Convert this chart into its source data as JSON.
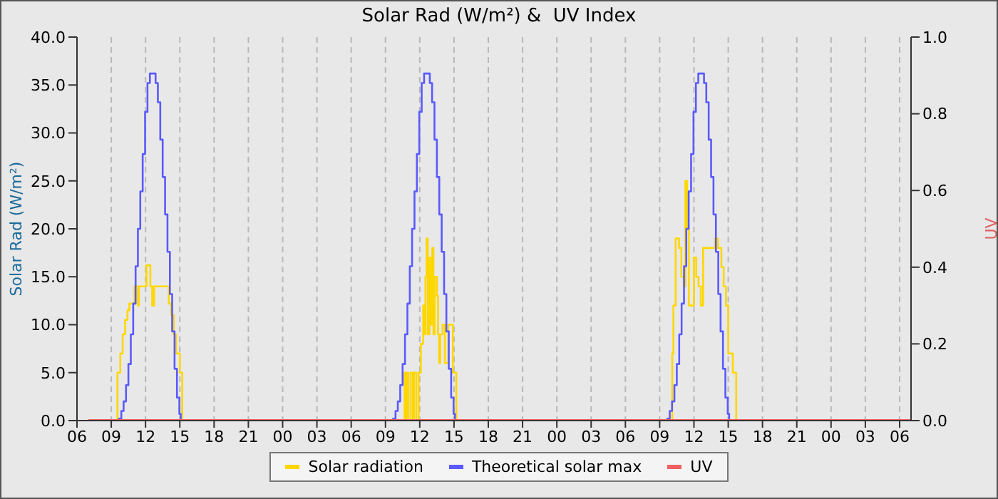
{
  "chart_data": {
    "type": "step",
    "title": "Solar Rad (W/m²) &  UV Index",
    "ylabel": "Solar Rad (W/m²)",
    "y2label": "UV",
    "xlim": [
      6,
      79
    ],
    "xticks": [
      {
        "value": 6,
        "label": "06"
      },
      {
        "value": 9,
        "label": "09"
      },
      {
        "value": 12,
        "label": "12"
      },
      {
        "value": 15,
        "label": "15"
      },
      {
        "value": 18,
        "label": "18"
      },
      {
        "value": 21,
        "label": "21"
      },
      {
        "value": 24,
        "label": "00"
      },
      {
        "value": 27,
        "label": "03"
      },
      {
        "value": 30,
        "label": "06"
      },
      {
        "value": 33,
        "label": "09"
      },
      {
        "value": 36,
        "label": "12"
      },
      {
        "value": 39,
        "label": "15"
      },
      {
        "value": 42,
        "label": "18"
      },
      {
        "value": 45,
        "label": "21"
      },
      {
        "value": 48,
        "label": "00"
      },
      {
        "value": 51,
        "label": "03"
      },
      {
        "value": 54,
        "label": "06"
      },
      {
        "value": 57,
        "label": "09"
      },
      {
        "value": 60,
        "label": "12"
      },
      {
        "value": 63,
        "label": "15"
      },
      {
        "value": 66,
        "label": "18"
      },
      {
        "value": 69,
        "label": "21"
      },
      {
        "value": 72,
        "label": "00"
      },
      {
        "value": 75,
        "label": "03"
      },
      {
        "value": 78,
        "label": "06"
      }
    ],
    "ylim": [
      0,
      40
    ],
    "yticks": [
      {
        "value": 0,
        "label": "0.0"
      },
      {
        "value": 5,
        "label": "5.0"
      },
      {
        "value": 10,
        "label": "10.0"
      },
      {
        "value": 15,
        "label": "15.0"
      },
      {
        "value": 20,
        "label": "20.0"
      },
      {
        "value": 25,
        "label": "25.0"
      },
      {
        "value": 30,
        "label": "30.0"
      },
      {
        "value": 35,
        "label": "35.0"
      },
      {
        "value": 40,
        "label": "40.0"
      }
    ],
    "y2lim": [
      0,
      1
    ],
    "y2ticks": [
      {
        "value": 0,
        "label": "0.0"
      },
      {
        "value": 0.2,
        "label": "0.2"
      },
      {
        "value": 0.4,
        "label": "0.4"
      },
      {
        "value": 0.6,
        "label": "0.6"
      },
      {
        "value": 0.8,
        "label": "0.8"
      },
      {
        "value": 1,
        "label": "1.0"
      }
    ],
    "grid": true,
    "legend": "bottom",
    "marker": "none",
    "line_style": "solid",
    "series": [
      {
        "name": "Solar radiation",
        "color": "#ffd700",
        "type": "step",
        "x": [
          9.5,
          9.54,
          9.79,
          10.0,
          10.21,
          10.42,
          10.58,
          11.04,
          11.33,
          11.42,
          12.08,
          12.42,
          12.58,
          12.75,
          14.04,
          14.25,
          14.46,
          14.67,
          15.0,
          15.21,
          25,
          34.6,
          34.67,
          34.8,
          34.9,
          35.0,
          35.2,
          35.4,
          35.5,
          35.7,
          35.9,
          36.1,
          36.3,
          36.4,
          36.5,
          36.6,
          36.7,
          36.85,
          37.0,
          37.1,
          37.2,
          37.3,
          37.5,
          37.6,
          37.7,
          37.8,
          38.0,
          38.2,
          38.5,
          38.9,
          39.2,
          50,
          58.08,
          58.1,
          58.2,
          58.4,
          58.7,
          58.9,
          59.1,
          59.25,
          59.4,
          59.55,
          59.9,
          60.0,
          60.2,
          60.4,
          60.6,
          60.8,
          61.7,
          61.85,
          62.1,
          62.4,
          62.6,
          62.8,
          63.0,
          63.4,
          63.7
        ],
        "values": [
          0,
          5,
          7,
          9,
          10.5,
          11.5,
          12.2,
          14,
          12,
          14,
          16.2,
          14,
          12,
          14,
          12.2,
          11,
          9,
          7,
          5,
          0,
          null,
          0,
          5,
          0,
          5,
          0,
          5,
          0,
          5,
          0,
          5,
          8,
          12,
          9,
          15,
          19,
          9,
          17,
          10,
          18,
          9,
          15,
          13,
          9,
          6,
          9,
          10,
          6,
          10,
          5,
          0,
          null,
          0,
          7,
          12,
          19,
          18,
          15,
          14,
          25,
          20,
          12,
          12,
          17,
          15,
          14,
          12,
          18,
          18,
          19,
          18,
          16,
          14,
          12,
          7,
          5,
          0
        ]
      },
      {
        "name": "Theoretical solar max",
        "color": "#5a5aff",
        "type": "step",
        "x": [
          9.5,
          9.67,
          9.88,
          10.08,
          10.29,
          10.5,
          10.71,
          10.92,
          11.13,
          11.33,
          11.54,
          11.75,
          11.96,
          12.17,
          12.38,
          12.67,
          12.88,
          13.08,
          13.29,
          13.5,
          13.71,
          13.92,
          14.13,
          14.33,
          14.54,
          14.75,
          14.96,
          15.08,
          25,
          33.5,
          33.67,
          33.88,
          34.08,
          34.29,
          34.5,
          34.71,
          34.92,
          35.13,
          35.33,
          35.54,
          35.75,
          35.96,
          36.17,
          36.38,
          36.67,
          36.88,
          37.08,
          37.29,
          37.5,
          37.71,
          37.92,
          38.13,
          38.33,
          38.54,
          38.75,
          38.96,
          39.08,
          50,
          57.5,
          57.67,
          57.88,
          58.08,
          58.29,
          58.5,
          58.71,
          58.92,
          59.13,
          59.33,
          59.54,
          59.75,
          59.96,
          60.17,
          60.38,
          60.67,
          60.88,
          61.08,
          61.29,
          61.5,
          61.71,
          61.92,
          62.13,
          62.33,
          62.54,
          62.75,
          62.96,
          63.08
        ],
        "values": [
          0,
          0.2,
          1,
          2,
          3.7,
          5.9,
          9,
          12.2,
          16.1,
          20,
          23.9,
          27.8,
          32.2,
          35.2,
          36.2,
          36.2,
          35.2,
          33.2,
          29.3,
          25.4,
          21.5,
          17.6,
          13.2,
          9.3,
          5.4,
          2.4,
          0.7,
          0,
          null,
          0,
          0.2,
          1,
          2,
          3.7,
          5.9,
          9,
          12.2,
          16.1,
          20,
          23.9,
          27.8,
          32.2,
          35.2,
          36.2,
          36.2,
          35.2,
          33.2,
          29.3,
          25.4,
          21.5,
          17.6,
          13.2,
          9.3,
          5.4,
          2.4,
          0.7,
          0,
          null,
          0,
          0.2,
          1,
          2,
          3.7,
          5.9,
          9,
          12.2,
          16.1,
          20,
          23.9,
          27.8,
          32.2,
          35.2,
          36.2,
          36.2,
          35.2,
          33.2,
          29.3,
          25.4,
          21.5,
          17.6,
          13.2,
          9.3,
          5.4,
          2.4,
          0.7,
          0
        ]
      },
      {
        "name": "UV",
        "color": "#f06060",
        "type": "line",
        "axis": "y2",
        "x": [
          7,
          79
        ],
        "values": [
          0,
          0
        ]
      }
    ]
  }
}
